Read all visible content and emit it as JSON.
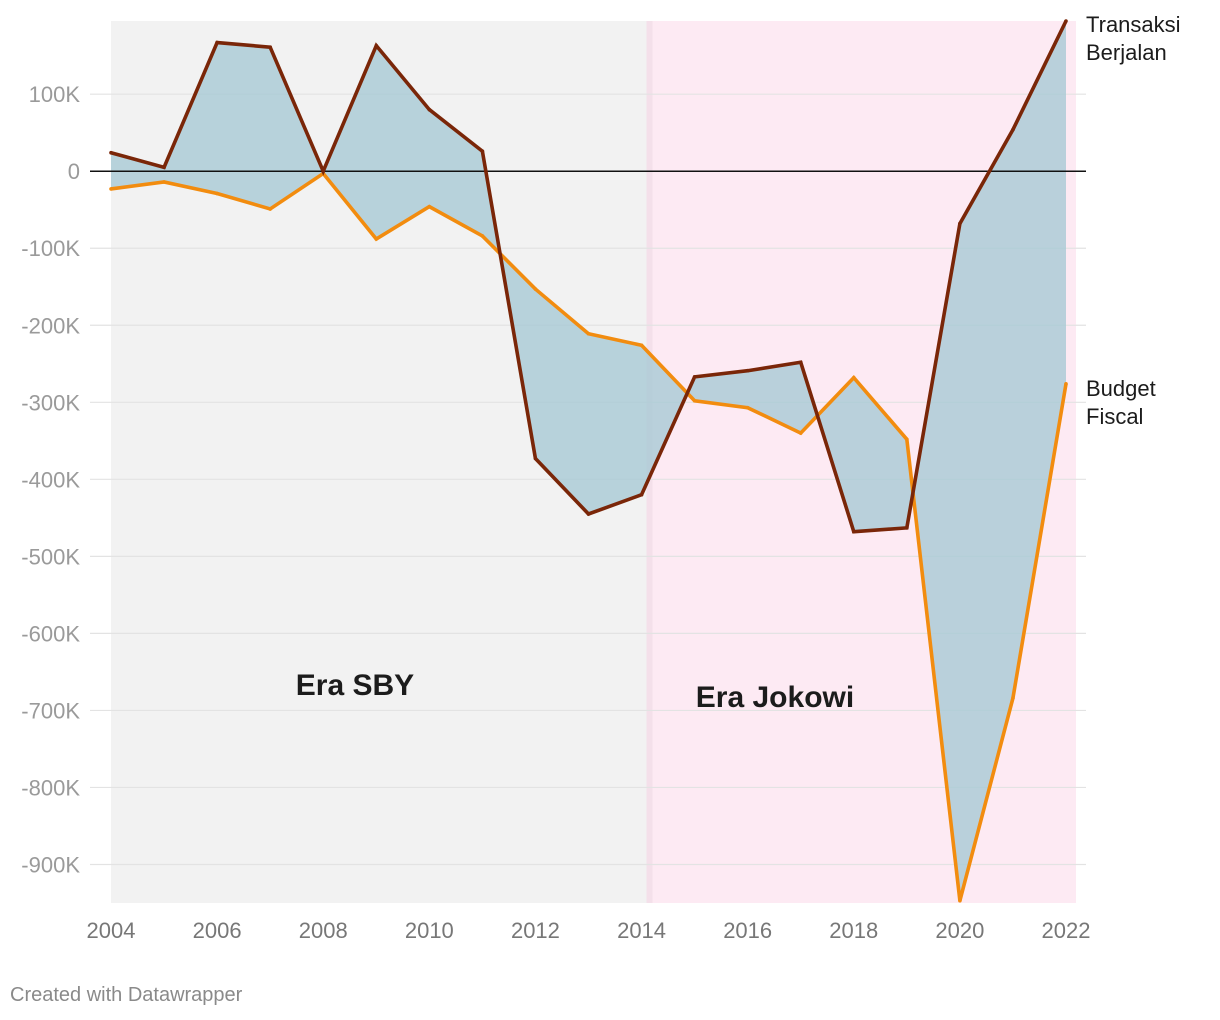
{
  "chart_data": {
    "type": "line",
    "x": [
      2004,
      2005,
      2006,
      2007,
      2008,
      2009,
      2010,
      2011,
      2012,
      2013,
      2014,
      2015,
      2016,
      2017,
      2018,
      2019,
      2020,
      2021,
      2022
    ],
    "series": [
      {
        "name": "Transaksi Berjalan",
        "name_lines": [
          "Transaksi",
          "Berjalan"
        ],
        "color": "#7a2608",
        "values": [
          24000,
          5000,
          167000,
          161000,
          0,
          163000,
          80000,
          26000,
          -373000,
          -445000,
          -420000,
          -267000,
          -259000,
          -248000,
          -468000,
          -463000,
          -68000,
          54000,
          195000
        ]
      },
      {
        "name": "Budget Fiscal",
        "name_lines": [
          "Budget",
          "Fiscal"
        ],
        "color": "#f28c0f",
        "values": [
          -23000,
          -14000,
          -29000,
          -49000,
          -3000,
          -88000,
          -46000,
          -84000,
          -153000,
          -211000,
          -226000,
          -298000,
          -307000,
          -340000,
          -268000,
          -348000,
          -947000,
          -684000,
          -276000
        ]
      }
    ],
    "fill_between_color": "#a8c9d4",
    "xlim": [
      2004,
      2022
    ],
    "ylim": [
      -950000,
      195000
    ],
    "x_ticks": [
      2004,
      2006,
      2008,
      2010,
      2012,
      2014,
      2016,
      2018,
      2020,
      2022
    ],
    "y_ticks": [
      100000,
      0,
      -100000,
      -200000,
      -300000,
      -400000,
      -500000,
      -600000,
      -700000,
      -800000,
      -900000
    ],
    "y_tick_labels": [
      "100K",
      "0",
      "-100K",
      "-200K",
      "-300K",
      "-400K",
      "-500K",
      "-600K",
      "-700K",
      "-800K",
      "-900K"
    ],
    "grid": true,
    "regions": [
      {
        "label": "Era SBY",
        "from": 2004,
        "to": 2014.15,
        "color": "#f2f2f2"
      },
      {
        "label": "Era Jokowi",
        "from": 2014.15,
        "to": 2022.2,
        "color": "#fdeaf3"
      }
    ],
    "region_divider_color": "#f4e0ea",
    "title": "",
    "xlabel": "",
    "ylabel": ""
  },
  "credit": "Created with Datawrapper"
}
